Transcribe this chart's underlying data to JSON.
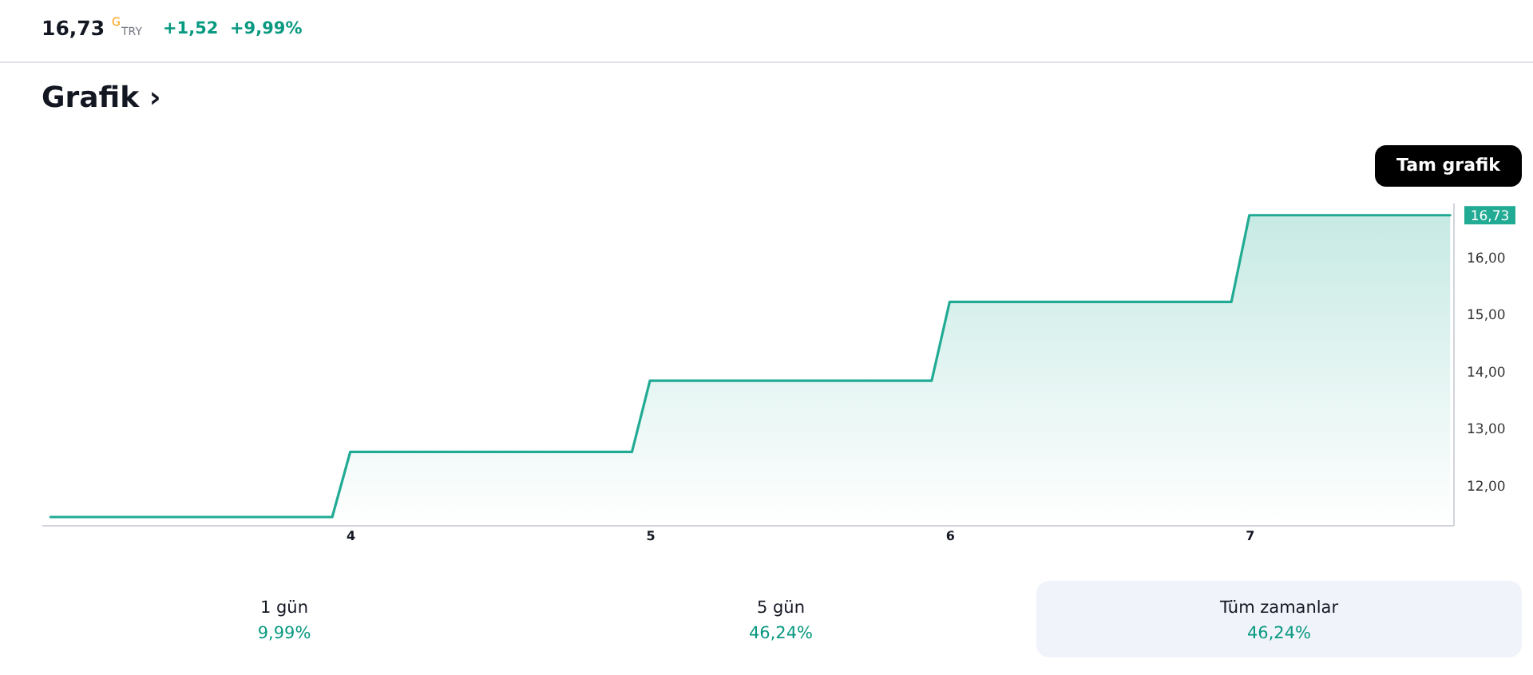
{
  "chart_data": {
    "type": "area",
    "title": "Grafik ›",
    "annotations": [
      "16,73",
      "G",
      "TRY",
      "+1,52",
      "+9,99%",
      "Tam grafik",
      "1 gün",
      "9,99%",
      "5 gün",
      "46,24%",
      "Tüm zamanlar",
      "46,24%"
    ],
    "x": [
      3.0,
      3.94,
      4.0,
      4.94,
      5.0,
      5.94,
      6.0,
      6.94,
      7.0,
      7.67
    ],
    "series": [
      {
        "color": "#22ab94",
        "values": [
          11.44,
          11.44,
          12.58,
          12.58,
          13.83,
          13.83,
          15.21,
          15.21,
          16.73,
          16.73
        ],
        "value_labels": [
          null,
          null,
          null,
          null,
          null,
          null,
          null,
          null,
          null,
          "16,73"
        ]
      }
    ],
    "xlim": [
      2.97,
      7.68
    ],
    "xticks": [
      4,
      5,
      6,
      7
    ],
    "ylim": [
      11.3,
      16.95
    ],
    "yticks": [
      {
        "value": 12,
        "label": "12,00"
      },
      {
        "value": 13,
        "label": "13,00"
      },
      {
        "value": 14,
        "label": "14,00"
      },
      {
        "value": 15,
        "label": "15,00"
      },
      {
        "value": 16,
        "label": "16,00"
      }
    ],
    "grid": false,
    "line_style": "solid"
  }
}
